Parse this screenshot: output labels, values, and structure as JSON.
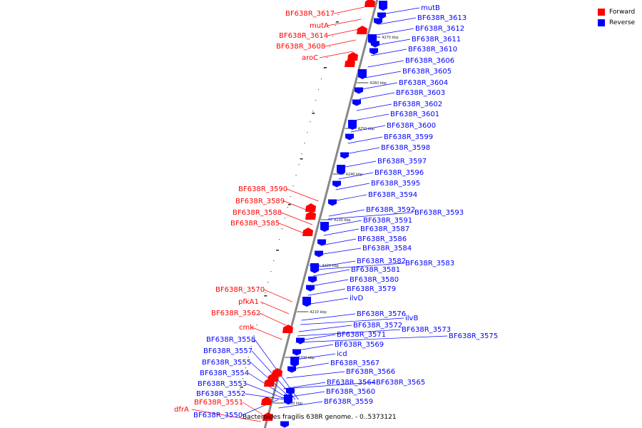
{
  "colors": {
    "forward": "#ff0000",
    "reverse": "#0000ff",
    "backbone": "#888888"
  },
  "legend": [
    {
      "label": "Forward",
      "color": "#ff0000"
    },
    {
      "label": "Reverse",
      "color": "#0000ff"
    }
  ],
  "caption": "Bacteroides fragilis 638R genome. - 0..5373121",
  "scale_labels": [
    "4270 kbp",
    "4260 kbp",
    "4250 kbp",
    "4240 kbp",
    "4230 kbp",
    "4220 kbp",
    "4210 kbp",
    "4200 kbp",
    "4190 kbp"
  ],
  "forward_genes": [
    "BF638R_3617",
    "mutA",
    "BF638R_3614",
    "BF638R_3608",
    "aroC",
    "BF638R_3590",
    "BF638R_3589",
    "BF638R_3588",
    "BF638R_3585",
    "BF638R_3570",
    "pfkA1",
    "BF638R_3562",
    "cmk",
    "BF638R_3551",
    "dfrA"
  ],
  "reverse_genes": [
    "mutB",
    "BF638R_3613",
    "BF638R_3612",
    "BF638R_3611",
    "BF638R_3610",
    "BF638R_3606",
    "BF638R_3605",
    "BF638R_3604",
    "BF638R_3603",
    "BF638R_3602",
    "BF638R_3601",
    "BF638R_3600",
    "BF638R_3599",
    "BF638R_3598",
    "BF638R_3597",
    "BF638R_3596",
    "BF638R_3595",
    "BF638R_3594",
    "BF638R_3592",
    "BF638R_3593",
    "BF638R_3591",
    "BF638R_3587",
    "BF638R_3586",
    "BF638R_3584",
    "BF638R_3582",
    "BF638R_3583",
    "BF638R_3581",
    "BF638R_3580",
    "BF638R_3579",
    "ilvD",
    "BF638R_3576",
    "ilvB",
    "BF638R_3572",
    "BF638R_3573",
    "BF638R_3575",
    "BF638R_3571",
    "BF638R_3569",
    "icd",
    "BF638R_3567",
    "BF638R_3566",
    "BF638R_3564",
    "BF638R_3565",
    "BF638R_3560",
    "BF638R_3559",
    "BF638R_3558",
    "BF638R_3557",
    "BF638R_3555",
    "BF638R_3554",
    "BF638R_3553",
    "BF638R_3552",
    "BF638R_3550"
  ]
}
